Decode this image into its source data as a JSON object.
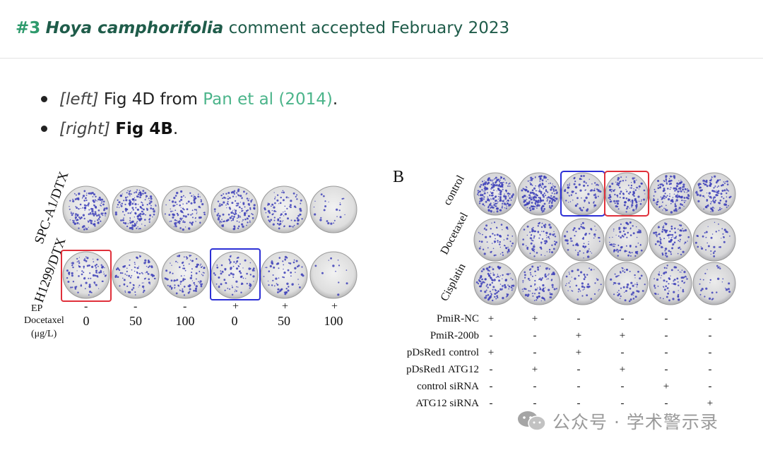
{
  "header": {
    "number": "#3",
    "species": "Hoya camphorifolia",
    "rest": "comment accepted February 2023"
  },
  "bullets": [
    {
      "tag": "[left]",
      "text": "Fig 4D from",
      "link": "Pan et al (2014)",
      "end": "."
    },
    {
      "tag": "[right]",
      "bold": "Fig 4B",
      "end": "."
    }
  ],
  "left_figure": {
    "row_labels": [
      "SPC-A1/DTX",
      "H1299/DTX"
    ],
    "ep": {
      "label": "EP",
      "values": [
        "-",
        "-",
        "-",
        "+",
        "+",
        "+"
      ]
    },
    "docetaxel": {
      "label": "Docetaxel",
      "unit": "(μg/L)",
      "values": [
        "0",
        "50",
        "100",
        "0",
        "50",
        "100"
      ]
    },
    "colony_color": "#3d3fb8",
    "highlight_red": "#e0303a",
    "highlight_blue": "#2c2fd6"
  },
  "right_figure": {
    "panel_label": "B",
    "row_labels": [
      "control",
      "Docetaxel",
      "Cisplatin"
    ],
    "conditions": [
      {
        "label": "PmiR-NC",
        "values": [
          "+",
          "+",
          "-",
          "-",
          "-",
          "-"
        ]
      },
      {
        "label": "PmiR-200b",
        "values": [
          "-",
          "-",
          "+",
          "+",
          "-",
          "-"
        ]
      },
      {
        "label": "pDsRed1 control",
        "values": [
          "+",
          "-",
          "+",
          "-",
          "-",
          "-"
        ]
      },
      {
        "label": "pDsRed1 ATG12",
        "values": [
          "-",
          "+",
          "-",
          "+",
          "-",
          "-"
        ]
      },
      {
        "label": "control siRNA",
        "values": [
          "-",
          "-",
          "-",
          "-",
          "+",
          "-"
        ]
      },
      {
        "label": "ATG12 siRNA",
        "values": [
          "-",
          "-",
          "-",
          "-",
          "-",
          "+"
        ]
      }
    ]
  },
  "watermark": {
    "text": "公众号 · 学术警示录",
    "icon": "wechat-icon"
  }
}
